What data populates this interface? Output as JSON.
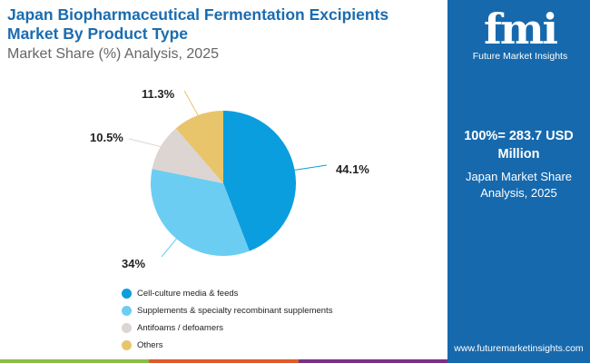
{
  "header": {
    "title": "Japan Biopharmaceutical Fermentation Excipients Market By Product Type",
    "subtitle": "Market Share (%) Analysis, 2025"
  },
  "side": {
    "logo_text": "fmi",
    "brand": "Future Market Insights",
    "total": "100%= 283.7 USD Million",
    "region": "Japan Market Share Analysis, 2025",
    "url": "www.futuremarketinsights.com"
  },
  "chart_data": {
    "type": "pie",
    "categories": [
      "Cell-culture media & feeds",
      "Supplements & specialty recombinant supplements",
      "Antifoams / defoamers",
      "Others"
    ],
    "values": [
      44.1,
      34,
      10.5,
      11.3
    ],
    "labels": [
      "44.1%",
      "34%",
      "10.5%",
      "11.3%"
    ],
    "colors": [
      "#0a9ede",
      "#6ccdf2",
      "#dcd5d1",
      "#e8c46a"
    ],
    "legend_position": "bottom"
  },
  "accent_bars": [
    "#8cbd45",
    "#e25a2b",
    "#7b3088"
  ]
}
